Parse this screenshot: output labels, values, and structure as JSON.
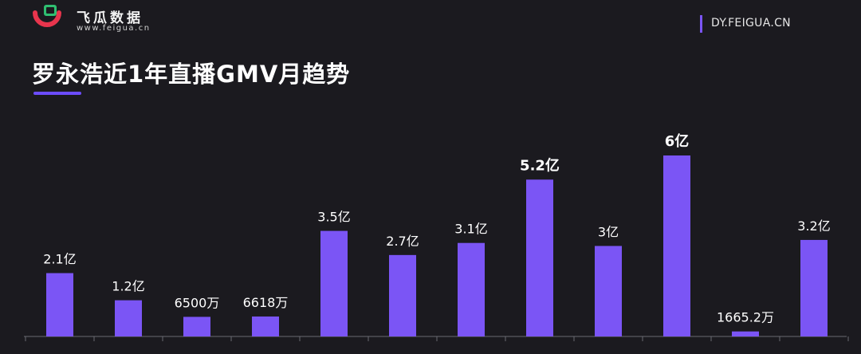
{
  "header": {
    "brand_name": "飞瓜数据",
    "brand_url": "www.feigua.cn",
    "site_url": "DY.FEIGUA.CN"
  },
  "colors": {
    "bar": "#7b55f5",
    "background": "#1b1a1f",
    "accent": "#6c4cff"
  },
  "chart_data": {
    "type": "bar",
    "title": "罗永浩近1年直播GMV月趋势",
    "unit_note": "values in 亿 (100 million)",
    "values": [
      2.1,
      1.2,
      0.65,
      0.6618,
      3.5,
      2.7,
      3.1,
      5.2,
      3.0,
      6.0,
      0.16652,
      3.2
    ],
    "labels": [
      "2.1亿",
      "1.2亿",
      "6500万",
      "6618万",
      "3.5亿",
      "2.7亿",
      "3.1亿",
      "5.2亿",
      "3亿",
      "6亿",
      "1665.2万",
      "3.2亿"
    ],
    "emphasized": [
      false,
      false,
      false,
      false,
      false,
      false,
      false,
      true,
      false,
      true,
      false,
      false
    ],
    "ylim": [
      0,
      6.0
    ],
    "grid": false,
    "legend": "none"
  }
}
